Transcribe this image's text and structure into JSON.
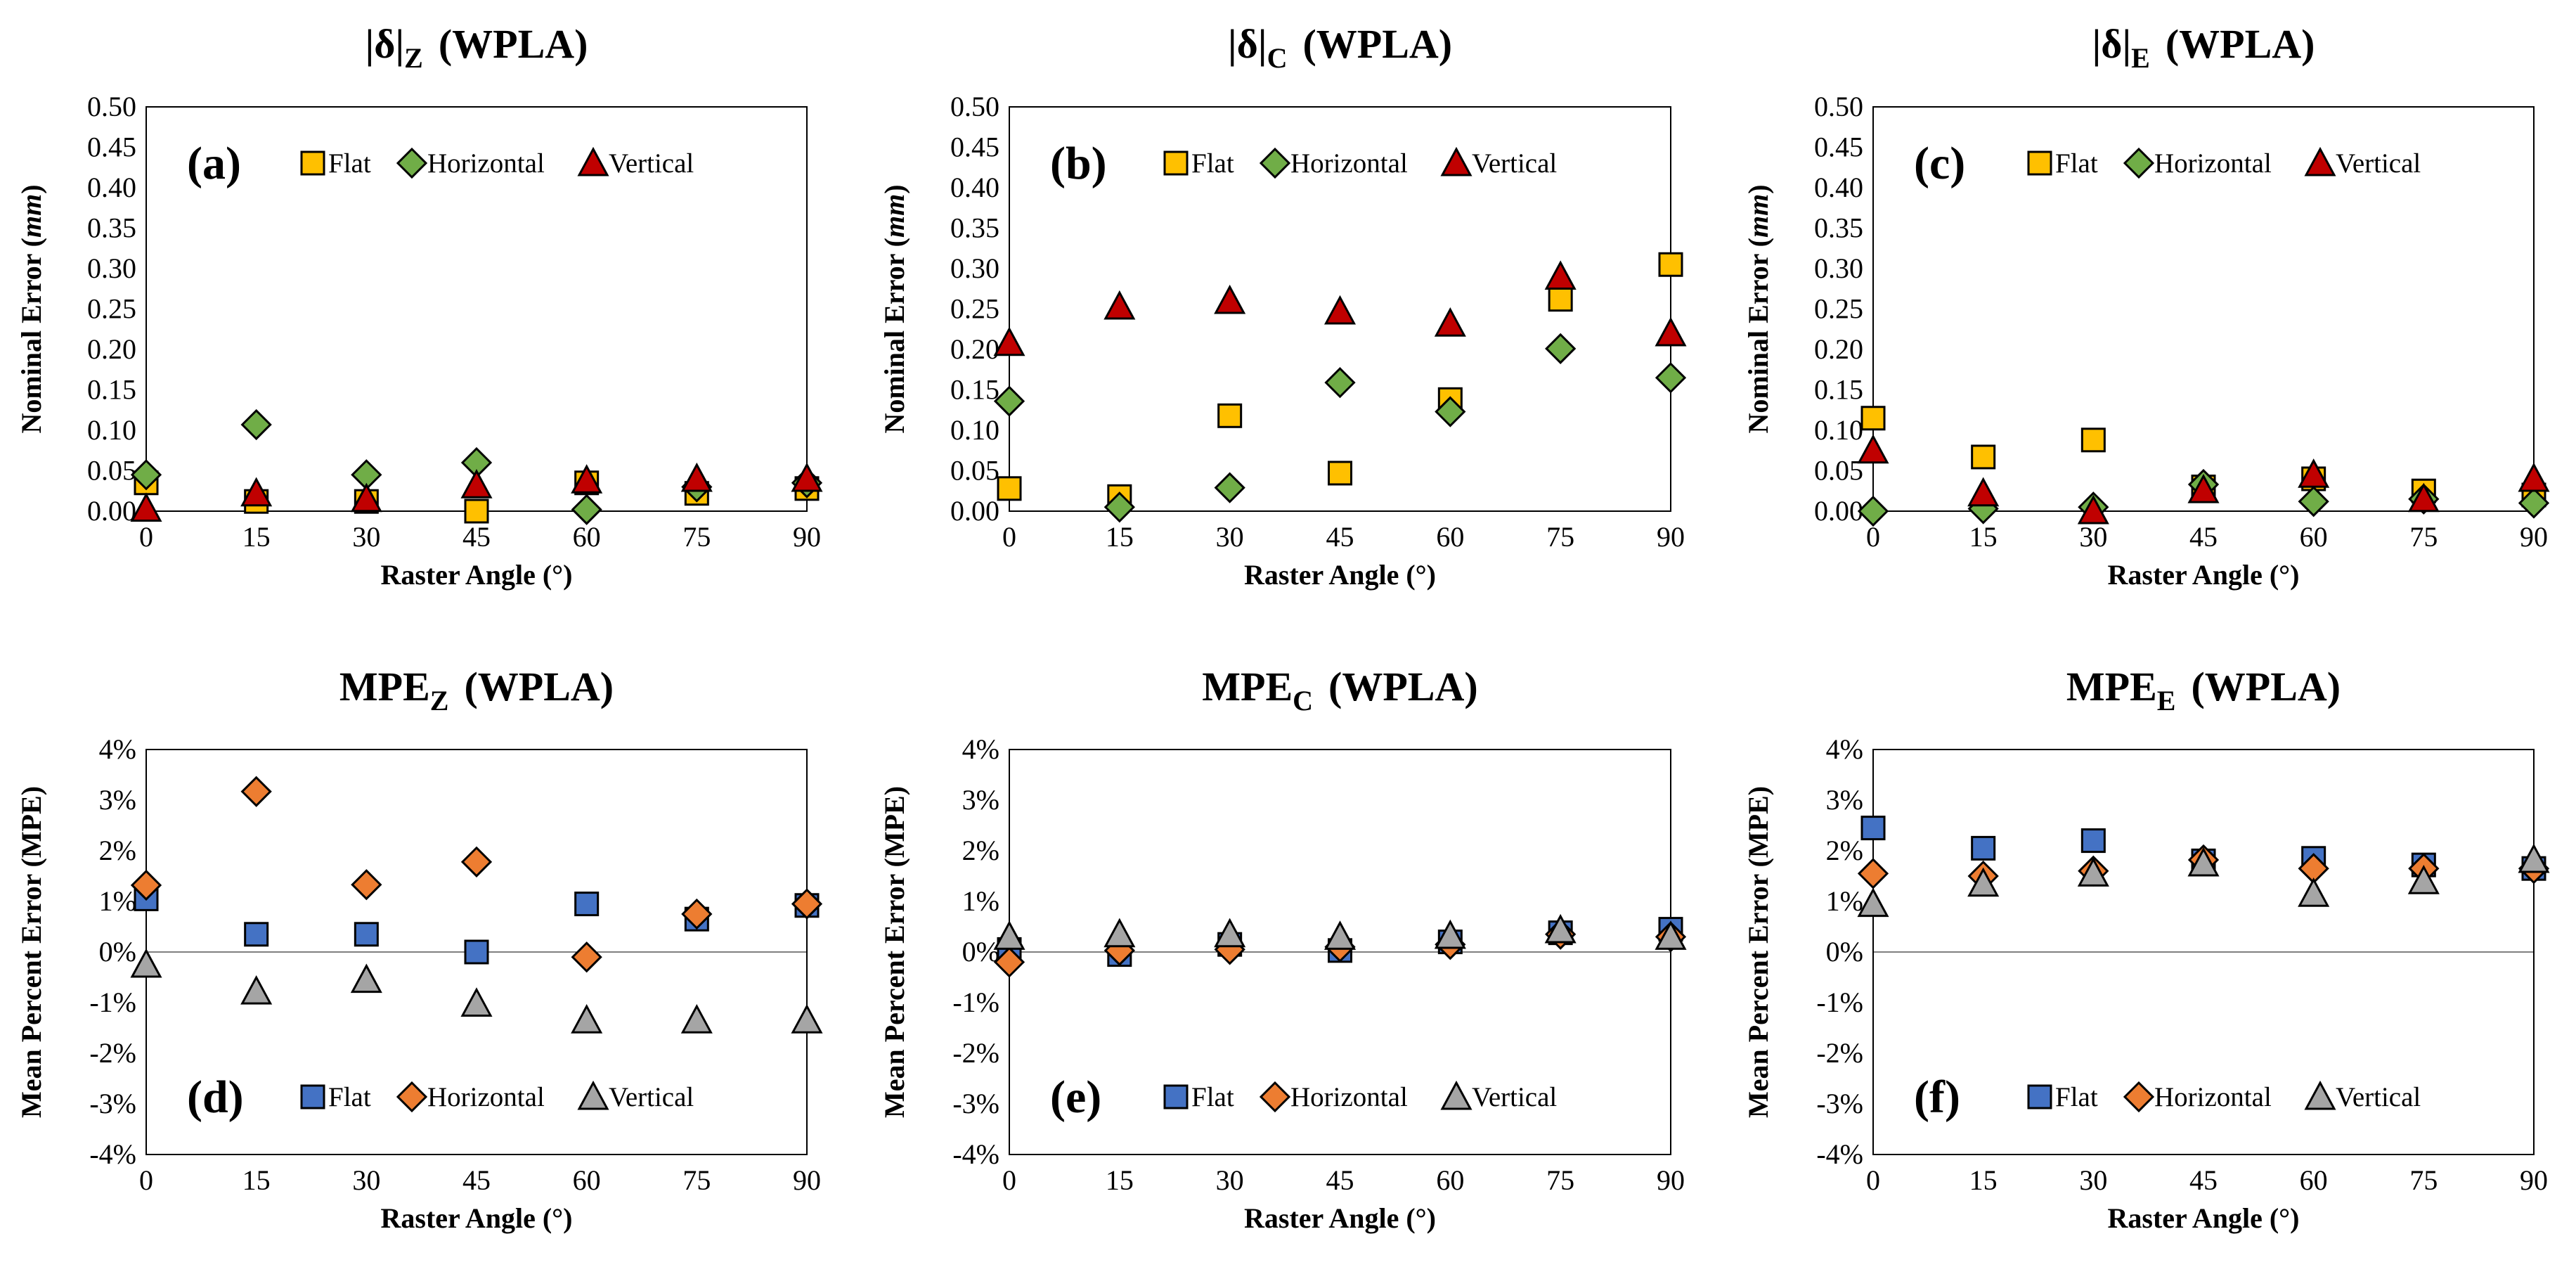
{
  "colors": {
    "flat_top": "#FFC000",
    "horizontal_top": "#70AD47",
    "vertical_top": "#C00000",
    "flat_bottom": "#4472C4",
    "horizontal_bottom": "#ED7D31",
    "vertical_bottom": "#A5A5A5"
  },
  "chart_data": [
    {
      "id": "a",
      "type": "scatter",
      "title": "|δ|",
      "title_sub": "Z",
      "title_suffix": "(WPLA)",
      "panel_label": "(a)",
      "xlabel": "Raster Angle (°)",
      "ylabel": "Nominal  Error (mm)",
      "x_ticks": [
        "0",
        "15",
        "30",
        "45",
        "60",
        "75",
        "90"
      ],
      "xlim": [
        0,
        90
      ],
      "ylim": [
        0,
        0.5
      ],
      "y_ticks": [
        "0.00",
        "0.05",
        "0.10",
        "0.15",
        "0.20",
        "0.25",
        "0.30",
        "0.35",
        "0.40",
        "0.45",
        "0.50"
      ],
      "legend_position": "top",
      "x": [
        0,
        15,
        30,
        45,
        60,
        75,
        90
      ],
      "series": [
        {
          "name": "Flat",
          "marker": "square",
          "color": "#FFC000",
          "values": [
            0.035,
            0.012,
            0.012,
            0.0,
            0.035,
            0.022,
            0.028
          ]
        },
        {
          "name": "Horizontal",
          "marker": "diamond",
          "color": "#70AD47",
          "values": [
            0.045,
            0.107,
            0.045,
            0.06,
            0.002,
            0.03,
            0.035
          ]
        },
        {
          "name": "Vertical",
          "marker": "triangle",
          "color": "#C00000",
          "values": [
            0.003,
            0.022,
            0.015,
            0.032,
            0.038,
            0.04,
            0.04
          ]
        }
      ]
    },
    {
      "id": "b",
      "type": "scatter",
      "title": "|δ|",
      "title_sub": "C",
      "title_suffix": "(WPLA)",
      "panel_label": "(b)",
      "xlabel": "Raster Angle (°)",
      "ylabel": "Nominal Error (mm)",
      "x_ticks": [
        "0",
        "15",
        "30",
        "45",
        "60",
        "75",
        "90"
      ],
      "xlim": [
        0,
        90
      ],
      "ylim": [
        0,
        0.5
      ],
      "y_ticks": [
        "0.00",
        "0.05",
        "0.10",
        "0.15",
        "0.20",
        "0.25",
        "0.30",
        "0.35",
        "0.40",
        "0.45",
        "0.50"
      ],
      "legend_position": "top",
      "x": [
        0,
        15,
        30,
        45,
        60,
        75,
        90
      ],
      "series": [
        {
          "name": "Flat",
          "marker": "square",
          "color": "#FFC000",
          "values": [
            0.028,
            0.018,
            0.118,
            0.047,
            0.138,
            0.262,
            0.305
          ]
        },
        {
          "name": "Horizontal",
          "marker": "diamond",
          "color": "#70AD47",
          "values": [
            0.136,
            0.005,
            0.029,
            0.159,
            0.123,
            0.201,
            0.165
          ]
        },
        {
          "name": "Vertical",
          "marker": "triangle",
          "color": "#C00000",
          "values": [
            0.208,
            0.253,
            0.26,
            0.247,
            0.232,
            0.29,
            0.22
          ]
        }
      ]
    },
    {
      "id": "c",
      "type": "scatter",
      "title": "|δ|",
      "title_sub": "E",
      "title_suffix": "(WPLA)",
      "panel_label": "(c)",
      "xlabel": "Raster Angle (°)",
      "ylabel": "Nominal Error (mm)",
      "x_ticks": [
        "0",
        "15",
        "30",
        "45",
        "60",
        "75",
        "90"
      ],
      "xlim": [
        0,
        90
      ],
      "ylim": [
        0,
        0.5
      ],
      "y_ticks": [
        "0.00",
        "0.05",
        "0.10",
        "0.15",
        "0.20",
        "0.25",
        "0.30",
        "0.35",
        "0.40",
        "0.45",
        "0.50"
      ],
      "legend_position": "top",
      "x": [
        0,
        15,
        30,
        45,
        60,
        75,
        90
      ],
      "series": [
        {
          "name": "Flat",
          "marker": "square",
          "color": "#FFC000",
          "values": [
            0.115,
            0.067,
            0.088,
            0.03,
            0.04,
            0.025,
            0.02
          ]
        },
        {
          "name": "Horizontal",
          "marker": "diamond",
          "color": "#70AD47",
          "values": [
            0.0,
            0.003,
            0.005,
            0.033,
            0.012,
            0.015,
            0.01
          ]
        },
        {
          "name": "Vertical",
          "marker": "triangle",
          "color": "#C00000",
          "values": [
            0.075,
            0.022,
            0.0,
            0.026,
            0.045,
            0.015,
            0.04
          ]
        }
      ]
    },
    {
      "id": "d",
      "type": "scatter",
      "title": "MPE",
      "title_sub": "Z",
      "title_suffix": "(WPLA)",
      "panel_label": "(d)",
      "xlabel": "Raster Angle (°)",
      "ylabel": "Mean Percent Error (MPE)",
      "x_ticks": [
        "0",
        "15",
        "30",
        "45",
        "60",
        "75",
        "90"
      ],
      "xlim": [
        0,
        90
      ],
      "ylim": [
        -4,
        4
      ],
      "y_ticks": [
        "-4%",
        "-3%",
        "-2%",
        "-1%",
        "0%",
        "1%",
        "2%",
        "3%",
        "4%"
      ],
      "legend_position": "bottom",
      "x": [
        0,
        15,
        30,
        45,
        60,
        75,
        90
      ],
      "series": [
        {
          "name": "Flat",
          "marker": "square",
          "color": "#4472C4",
          "values": [
            1.05,
            0.35,
            0.35,
            0.0,
            0.95,
            0.65,
            0.92
          ]
        },
        {
          "name": "Horizontal",
          "marker": "diamond",
          "color": "#ED7D31",
          "values": [
            1.32,
            3.17,
            1.33,
            1.78,
            -0.1,
            0.75,
            0.95
          ]
        },
        {
          "name": "Vertical",
          "marker": "triangle",
          "color": "#A5A5A5",
          "values": [
            -0.25,
            -0.78,
            -0.55,
            -1.02,
            -1.35,
            -1.35,
            -1.35
          ]
        }
      ]
    },
    {
      "id": "e",
      "type": "scatter",
      "title": "MPE",
      "title_sub": "C",
      "title_suffix": "(WPLA)",
      "panel_label": "(e)",
      "xlabel": "Raster Angle (°)",
      "ylabel": "Mean Percent Error (MPE)",
      "x_ticks": [
        "0",
        "15",
        "30",
        "45",
        "60",
        "75",
        "90"
      ],
      "xlim": [
        0,
        90
      ],
      "ylim": [
        -4,
        4
      ],
      "y_ticks": [
        "-4%",
        "-3%",
        "-2%",
        "-1%",
        "0%",
        "1%",
        "2%",
        "3%",
        "4%"
      ],
      "legend_position": "bottom",
      "x": [
        0,
        15,
        30,
        45,
        60,
        75,
        90
      ],
      "series": [
        {
          "name": "Flat",
          "marker": "square",
          "color": "#4472C4",
          "values": [
            0.05,
            -0.05,
            0.15,
            0.03,
            0.2,
            0.38,
            0.45
          ]
        },
        {
          "name": "Horizontal",
          "marker": "diamond",
          "color": "#ED7D31",
          "values": [
            -0.2,
            0.03,
            0.05,
            0.1,
            0.15,
            0.35,
            0.3
          ]
        },
        {
          "name": "Vertical",
          "marker": "triangle",
          "color": "#A5A5A5",
          "values": [
            0.3,
            0.35,
            0.35,
            0.3,
            0.32,
            0.43,
            0.3
          ]
        }
      ]
    },
    {
      "id": "f",
      "type": "scatter",
      "title": "MPE",
      "title_sub": "E",
      "title_suffix": "(WPLA)",
      "panel_label": "(f)",
      "xlabel": "Raster Angle (°)",
      "ylabel": "Mean Percent Error (MPE)",
      "x_ticks": [
        "0",
        "15",
        "30",
        "45",
        "60",
        "75",
        "90"
      ],
      "xlim": [
        0,
        90
      ],
      "ylim": [
        -4,
        4
      ],
      "y_ticks": [
        "-4%",
        "-3%",
        "-2%",
        "-1%",
        "0%",
        "1%",
        "2%",
        "3%",
        "4%"
      ],
      "legend_position": "bottom",
      "x": [
        0,
        15,
        30,
        45,
        60,
        75,
        90
      ],
      "series": [
        {
          "name": "Flat",
          "marker": "square",
          "color": "#4472C4",
          "values": [
            2.45,
            2.05,
            2.2,
            1.8,
            1.85,
            1.72,
            1.65
          ]
        },
        {
          "name": "Horizontal",
          "marker": "diamond",
          "color": "#ED7D31",
          "values": [
            1.55,
            1.5,
            1.6,
            1.82,
            1.65,
            1.65,
            1.65
          ]
        },
        {
          "name": "Vertical",
          "marker": "triangle",
          "color": "#A5A5A5",
          "values": [
            0.95,
            1.35,
            1.55,
            1.75,
            1.15,
            1.4,
            1.82
          ]
        }
      ]
    }
  ]
}
